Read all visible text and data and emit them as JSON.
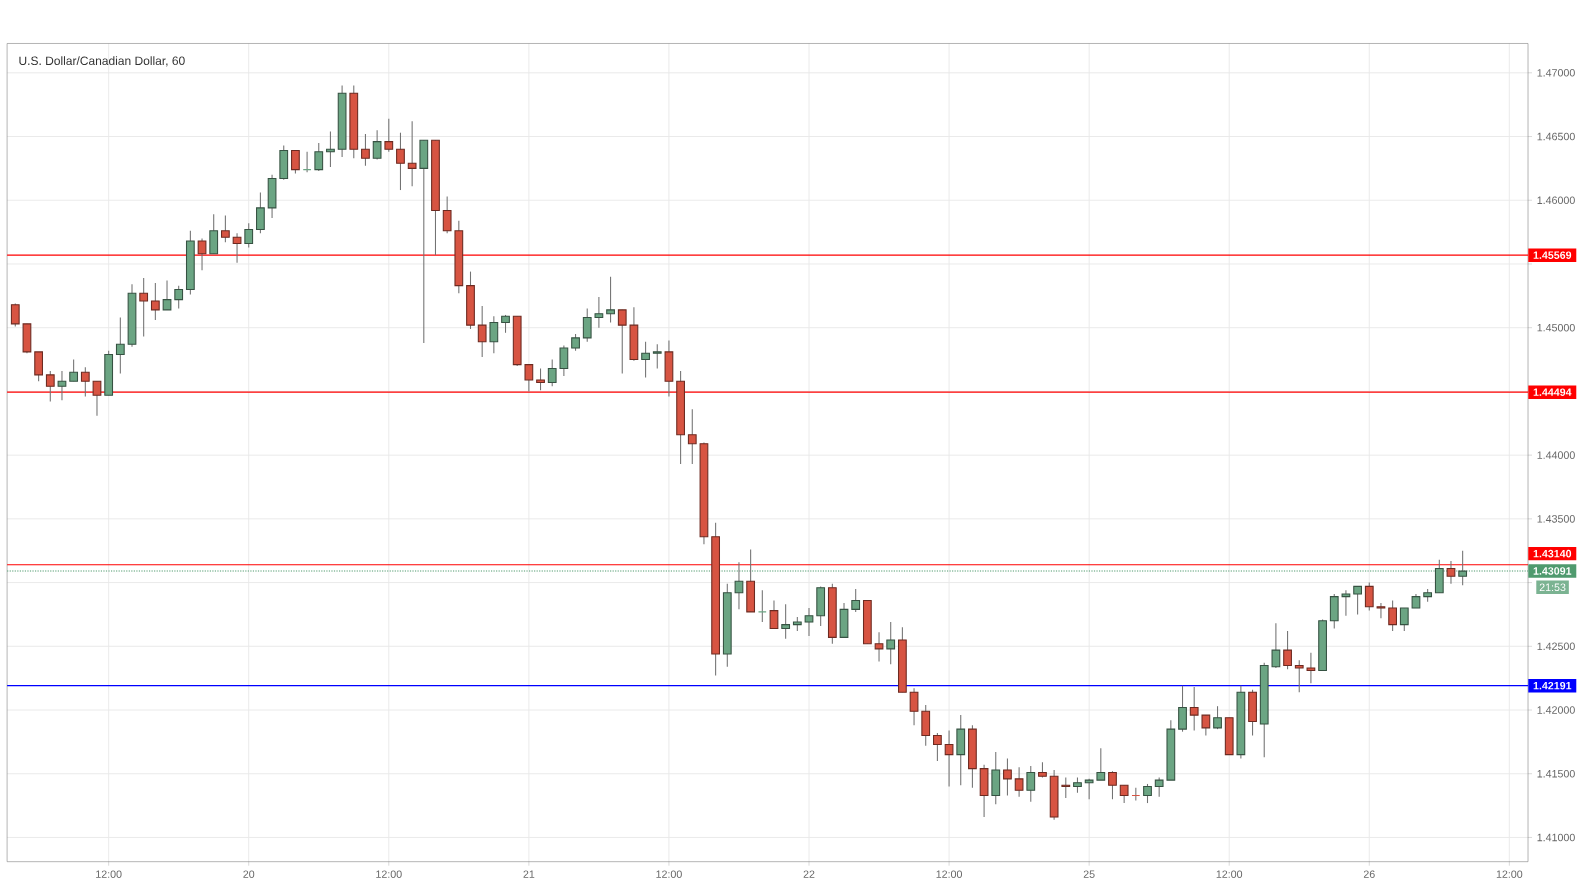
{
  "chart_data": {
    "type": "candlestick",
    "title": "U.S. Dollar/Canadian Dollar, 60",
    "categories": [
      null,
      null,
      null,
      null,
      null,
      null,
      null,
      null,
      "12:00",
      null,
      null,
      null,
      null,
      null,
      null,
      null,
      null,
      null,
      null,
      null,
      "20",
      null,
      null,
      null,
      null,
      null,
      null,
      null,
      null,
      null,
      null,
      null,
      "12:00",
      null,
      null,
      null,
      null,
      null,
      null,
      null,
      null,
      null,
      null,
      null,
      "21",
      null,
      null,
      null,
      null,
      null,
      null,
      null,
      null,
      null,
      null,
      null,
      "12:00",
      null,
      null,
      null,
      null,
      null,
      null,
      null,
      null,
      null,
      null,
      null,
      "22",
      null,
      null,
      null,
      null,
      null,
      null,
      null,
      null,
      null,
      null,
      null,
      "12:00",
      null,
      null,
      null,
      null,
      null,
      null,
      null,
      null,
      null,
      null,
      null,
      "25",
      null,
      null,
      null,
      null,
      null,
      null,
      null,
      null,
      null,
      null,
      null,
      "12:00",
      null,
      null,
      null,
      null,
      null,
      null,
      null,
      null,
      null,
      null,
      null,
      "26",
      null,
      null,
      null,
      null,
      null,
      null,
      null,
      null,
      null,
      null,
      null,
      "12:00"
    ],
    "ohlc": [
      [
        1.4518,
        1.4519,
        1.4501,
        1.4503
      ],
      [
        1.4503,
        1.4503,
        1.448,
        1.4481
      ],
      [
        1.4481,
        1.4481,
        1.4458,
        1.4463
      ],
      [
        1.4463,
        1.4466,
        1.4442,
        1.4454
      ],
      [
        1.4454,
        1.4466,
        1.4443,
        1.4458
      ],
      [
        1.4458,
        1.4475,
        1.4458,
        1.4465
      ],
      [
        1.4465,
        1.4469,
        1.4446,
        1.4458
      ],
      [
        1.4458,
        1.4458,
        1.4431,
        1.4447
      ],
      [
        1.4447,
        1.4482,
        1.4447,
        1.4479
      ],
      [
        1.4479,
        1.4508,
        1.4464,
        1.4487
      ],
      [
        1.4487,
        1.4534,
        1.4485,
        1.4527
      ],
      [
        1.4527,
        1.4539,
        1.4493,
        1.4521
      ],
      [
        1.4521,
        1.4535,
        1.4506,
        1.4514
      ],
      [
        1.4514,
        1.4537,
        1.4514,
        1.4522
      ],
      [
        1.4522,
        1.4533,
        1.4515,
        1.453
      ],
      [
        1.453,
        1.4576,
        1.4526,
        1.4568
      ],
      [
        1.4568,
        1.457,
        1.4545,
        1.4558
      ],
      [
        1.4558,
        1.4589,
        1.4558,
        1.4576
      ],
      [
        1.4576,
        1.4588,
        1.4567,
        1.4571
      ],
      [
        1.4571,
        1.4574,
        1.4551,
        1.4566
      ],
      [
        1.4566,
        1.4582,
        1.4563,
        1.4577
      ],
      [
        1.4577,
        1.4606,
        1.4574,
        1.4594
      ],
      [
        1.4594,
        1.462,
        1.4586,
        1.4617
      ],
      [
        1.4617,
        1.4643,
        1.4616,
        1.4639
      ],
      [
        1.4639,
        1.4639,
        1.4621,
        1.4624
      ],
      [
        1.4624,
        1.4638,
        1.4622,
        1.4624
      ],
      [
        1.4624,
        1.4645,
        1.4623,
        1.4638
      ],
      [
        1.4638,
        1.4654,
        1.4626,
        1.464
      ],
      [
        1.464,
        1.469,
        1.4634,
        1.4684
      ],
      [
        1.4684,
        1.469,
        1.4633,
        1.464
      ],
      [
        1.464,
        1.4652,
        1.4627,
        1.4633
      ],
      [
        1.4633,
        1.4655,
        1.4632,
        1.4646
      ],
      [
        1.4646,
        1.4664,
        1.4638,
        1.464
      ],
      [
        1.464,
        1.4653,
        1.4608,
        1.4629
      ],
      [
        1.4629,
        1.4662,
        1.4611,
        1.4625
      ],
      [
        1.4625,
        1.4647,
        1.4488,
        1.4647
      ],
      [
        1.4647,
        1.4647,
        1.4557,
        1.4592
      ],
      [
        1.4592,
        1.4603,
        1.4574,
        1.4576
      ],
      [
        1.4576,
        1.4584,
        1.4527,
        1.4533
      ],
      [
        1.4533,
        1.4544,
        1.4499,
        1.4502
      ],
      [
        1.4502,
        1.4517,
        1.4477,
        1.4489
      ],
      [
        1.4489,
        1.4509,
        1.448,
        1.4504
      ],
      [
        1.4504,
        1.451,
        1.4496,
        1.4509
      ],
      [
        1.4509,
        1.4509,
        1.447,
        1.4471
      ],
      [
        1.4471,
        1.4471,
        1.445,
        1.4459
      ],
      [
        1.4459,
        1.4468,
        1.4451,
        1.4457
      ],
      [
        1.4457,
        1.4475,
        1.4454,
        1.4468
      ],
      [
        1.4468,
        1.4486,
        1.4462,
        1.4484
      ],
      [
        1.4484,
        1.4495,
        1.4482,
        1.4492
      ],
      [
        1.4492,
        1.4515,
        1.4489,
        1.4508
      ],
      [
        1.4508,
        1.4524,
        1.45,
        1.4511
      ],
      [
        1.4511,
        1.454,
        1.4504,
        1.4514
      ],
      [
        1.4514,
        1.4514,
        1.4464,
        1.4502
      ],
      [
        1.4502,
        1.4516,
        1.4474,
        1.4475
      ],
      [
        1.4475,
        1.4489,
        1.4461,
        1.448
      ],
      [
        1.448,
        1.4487,
        1.4468,
        1.4481
      ],
      [
        1.4481,
        1.449,
        1.4446,
        1.4458
      ],
      [
        1.4458,
        1.4466,
        1.4393,
        1.4416
      ],
      [
        1.4416,
        1.4436,
        1.4393,
        1.4409
      ],
      [
        1.4409,
        1.441,
        1.433,
        1.4336
      ],
      [
        1.4336,
        1.4347,
        1.4227,
        1.4244
      ],
      [
        1.4244,
        1.4299,
        1.4234,
        1.4292
      ],
      [
        1.4292,
        1.4316,
        1.4279,
        1.4301
      ],
      [
        1.4301,
        1.4326,
        1.4277,
        1.4277
      ],
      [
        1.4277,
        1.4294,
        1.4269,
        1.4277
      ],
      [
        1.4278,
        1.4286,
        1.4264,
        1.4264
      ],
      [
        1.4264,
        1.4283,
        1.4256,
        1.4267
      ],
      [
        1.4267,
        1.4273,
        1.4262,
        1.4269
      ],
      [
        1.4269,
        1.428,
        1.4258,
        1.4274
      ],
      [
        1.4274,
        1.4297,
        1.4266,
        1.4296
      ],
      [
        1.4296,
        1.4299,
        1.4252,
        1.4257
      ],
      [
        1.4257,
        1.4284,
        1.4257,
        1.4279
      ],
      [
        1.4279,
        1.4295,
        1.4277,
        1.4286
      ],
      [
        1.4286,
        1.4286,
        1.4252,
        1.4252
      ],
      [
        1.4252,
        1.4261,
        1.4238,
        1.4248
      ],
      [
        1.4248,
        1.4269,
        1.4236,
        1.4255
      ],
      [
        1.4255,
        1.4265,
        1.4214,
        1.4214
      ],
      [
        1.4214,
        1.4217,
        1.4188,
        1.4199
      ],
      [
        1.4199,
        1.4204,
        1.4172,
        1.418
      ],
      [
        1.418,
        1.4182,
        1.416,
        1.4173
      ],
      [
        1.4173,
        1.4184,
        1.414,
        1.4165
      ],
      [
        1.4165,
        1.4196,
        1.4141,
        1.4185
      ],
      [
        1.4185,
        1.4188,
        1.4139,
        1.4154
      ],
      [
        1.4154,
        1.4157,
        1.4116,
        1.4133
      ],
      [
        1.4133,
        1.4167,
        1.4126,
        1.4153
      ],
      [
        1.4153,
        1.4162,
        1.4133,
        1.4146
      ],
      [
        1.4146,
        1.4155,
        1.4132,
        1.4137
      ],
      [
        1.4137,
        1.4156,
        1.4128,
        1.4151
      ],
      [
        1.4151,
        1.4159,
        1.4147,
        1.4148
      ],
      [
        1.4148,
        1.4153,
        1.4114,
        1.4116
      ],
      [
        1.4141,
        1.4147,
        1.4131,
        1.414
      ],
      [
        1.414,
        1.4147,
        1.4135,
        1.4143
      ],
      [
        1.4143,
        1.4146,
        1.413,
        1.4145
      ],
      [
        1.4145,
        1.417,
        1.4145,
        1.4151
      ],
      [
        1.4151,
        1.4152,
        1.413,
        1.4141
      ],
      [
        1.4141,
        1.4141,
        1.4127,
        1.4133
      ],
      [
        1.4133,
        1.4139,
        1.4129,
        1.4133
      ],
      [
        1.4133,
        1.4142,
        1.4127,
        1.414
      ],
      [
        1.414,
        1.4147,
        1.4132,
        1.4145
      ],
      [
        1.4145,
        1.4192,
        1.4145,
        1.4185
      ],
      [
        1.4185,
        1.4219,
        1.4183,
        1.4202
      ],
      [
        1.4202,
        1.4218,
        1.4184,
        1.4196
      ],
      [
        1.4196,
        1.4196,
        1.418,
        1.4186
      ],
      [
        1.4186,
        1.4203,
        1.4185,
        1.4194
      ],
      [
        1.4194,
        1.4194,
        1.4165,
        1.4165
      ],
      [
        1.4165,
        1.4219,
        1.4162,
        1.4214
      ],
      [
        1.4214,
        1.4216,
        1.418,
        1.4191
      ],
      [
        1.4189,
        1.4237,
        1.4163,
        1.4235
      ],
      [
        1.4234,
        1.4268,
        1.4233,
        1.4247
      ],
      [
        1.4247,
        1.4262,
        1.4232,
        1.4235
      ],
      [
        1.4235,
        1.4239,
        1.4214,
        1.4233
      ],
      [
        1.4233,
        1.4245,
        1.4221,
        1.4231
      ],
      [
        1.4231,
        1.4271,
        1.4231,
        1.427
      ],
      [
        1.427,
        1.4291,
        1.4264,
        1.4289
      ],
      [
        1.4289,
        1.4294,
        1.4274,
        1.4291
      ],
      [
        1.4291,
        1.4297,
        1.4275,
        1.4297
      ],
      [
        1.4297,
        1.43,
        1.4278,
        1.4281
      ],
      [
        1.4281,
        1.4284,
        1.4272,
        1.428
      ],
      [
        1.428,
        1.4286,
        1.4262,
        1.4267
      ],
      [
        1.4267,
        1.428,
        1.4262,
        1.428
      ],
      [
        1.428,
        1.4291,
        1.428,
        1.4289
      ],
      [
        1.4289,
        1.4295,
        1.4285,
        1.4292
      ],
      [
        1.4292,
        1.4318,
        1.4292,
        1.4311
      ],
      [
        1.4311,
        1.4317,
        1.4299,
        1.4305
      ],
      [
        1.4305,
        1.4325,
        1.4298,
        1.4309
      ],
      null,
      null,
      null,
      null
    ],
    "colors": [
      "#d75442",
      "#d75442",
      "#d75442",
      "#d75442",
      "#6ba583",
      "#6ba583",
      "#d75442",
      "#d75442",
      "#6ba583",
      "#6ba583",
      "#6ba583",
      "#d75442",
      "#d75442",
      "#6ba583",
      "#6ba583",
      "#6ba583",
      "#d75442",
      "#6ba583",
      "#d75442",
      "#d75442",
      "#6ba583",
      "#6ba583",
      "#6ba583",
      "#6ba583",
      "#d75442",
      "#6ba583",
      "#6ba583",
      "#6ba583",
      "#6ba583",
      "#d75442",
      "#d75442",
      "#6ba583",
      "#d75442",
      "#d75442",
      "#d75442",
      "#6ba583",
      "#d75442",
      "#d75442",
      "#d75442",
      "#d75442",
      "#d75442",
      "#6ba583",
      "#6ba583",
      "#d75442",
      "#d75442",
      "#d75442",
      "#6ba583",
      "#6ba583",
      "#6ba583",
      "#6ba583",
      "#6ba583",
      "#6ba583",
      "#d75442",
      "#d75442",
      "#6ba583",
      "#6ba583",
      "#d75442",
      "#d75442",
      "#d75442",
      "#d75442",
      "#d75442",
      "#6ba583",
      "#6ba583",
      "#d75442",
      "#6ba583",
      "#d75442",
      "#6ba583",
      "#6ba583",
      "#6ba583",
      "#6ba583",
      "#d75442",
      "#6ba583",
      "#6ba583",
      "#d75442",
      "#d75442",
      "#6ba583",
      "#d75442",
      "#d75442",
      "#d75442",
      "#d75442",
      "#d75442",
      "#6ba583",
      "#d75442",
      "#d75442",
      "#6ba583",
      "#d75442",
      "#d75442",
      "#6ba583",
      "#d75442",
      "#d75442",
      "#d75442",
      "#6ba583",
      "#6ba583",
      "#6ba583",
      "#d75442",
      "#d75442",
      "#d75442",
      "#6ba583",
      "#6ba583",
      "#6ba583",
      "#6ba583",
      "#d75442",
      "#d75442",
      "#6ba583",
      "#d75442",
      "#6ba583",
      "#d75442",
      "#6ba583",
      "#6ba583",
      "#d75442",
      "#d75442",
      "#d75442",
      "#6ba583",
      "#6ba583",
      "#6ba583",
      "#6ba583",
      "#d75442",
      "#d75442",
      "#d75442",
      "#6ba583",
      "#6ba583",
      "#6ba583",
      "#6ba583",
      "#d75442",
      "#6ba583",
      null,
      null,
      null,
      null
    ],
    "ylim": [
      1.4081,
      1.4723
    ],
    "yticks": [
      {
        "value": 1.41,
        "label": "1.41000"
      },
      {
        "value": 1.415,
        "label": "1.41500"
      },
      {
        "value": 1.42,
        "label": "1.42000"
      },
      {
        "value": 1.425,
        "label": "1.42500"
      },
      {
        "value": 1.43,
        "label": null
      },
      {
        "value": 1.435,
        "label": "1.43500"
      },
      {
        "value": 1.44,
        "label": "1.44000"
      },
      {
        "value": 1.445,
        "label": null
      },
      {
        "value": 1.45,
        "label": "1.45000"
      },
      {
        "value": 1.455,
        "label": null
      },
      {
        "value": 1.46,
        "label": "1.46000"
      },
      {
        "value": 1.465,
        "label": "1.46500"
      },
      {
        "value": 1.47,
        "label": "1.47000"
      }
    ],
    "grid": true,
    "ref_lines": [
      {
        "axis": "y",
        "value": 1.45569,
        "label": "1.45569",
        "color": "#ff0000",
        "line_style": "solid"
      },
      {
        "axis": "y",
        "value": 1.44494,
        "label": "1.44494",
        "color": "#ff0000",
        "line_style": "solid"
      },
      {
        "axis": "y",
        "value": 1.4314,
        "label": "1.43140",
        "color": "#ff0000",
        "line_style": "solid"
      },
      {
        "axis": "y",
        "value": 1.42191,
        "label": "1.42191",
        "color": "#0000ff",
        "line_style": "solid"
      },
      {
        "axis": "y",
        "value": 1.43091,
        "label": "1.43091",
        "color": "#4f9a6e",
        "line_style": "dotted"
      }
    ],
    "annotations": [
      "21:53"
    ]
  }
}
